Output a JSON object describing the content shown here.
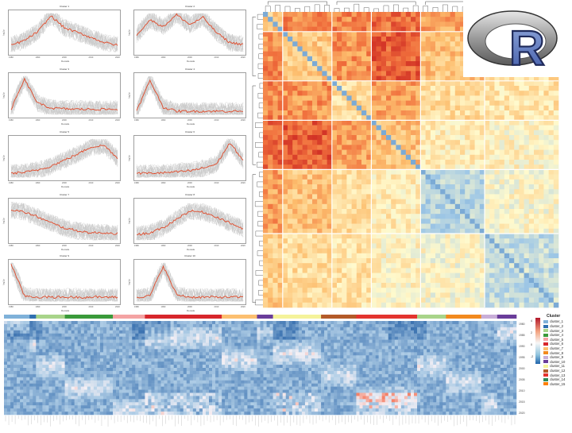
{
  "panels": [
    {
      "title": "Cluster 1",
      "x_ticks": [
        "1980",
        "1990",
        "2000",
        "2010",
        "2020"
      ],
      "y_label": "log1p"
    },
    {
      "title": "Cluster 2",
      "x_ticks": [
        "1980",
        "1990",
        "2000",
        "2010",
        "2020"
      ],
      "y_label": "log1p"
    },
    {
      "title": "Cluster 3",
      "x_ticks": [
        "1980",
        "1990",
        "2000",
        "2010",
        "2020"
      ],
      "y_label": "log1p"
    },
    {
      "title": "Cluster 4",
      "x_ticks": [
        "1980",
        "1990",
        "2000",
        "2010",
        "2020"
      ],
      "y_label": "log1p"
    },
    {
      "title": "Cluster 5",
      "x_ticks": [
        "1980",
        "1990",
        "2000",
        "2010",
        "2020"
      ],
      "y_label": "log1p"
    },
    {
      "title": "Cluster 6",
      "x_ticks": [
        "1980",
        "1990",
        "2000",
        "2010",
        "2020"
      ],
      "y_label": "log1p"
    },
    {
      "title": "Cluster 7",
      "x_ticks": [
        "1980",
        "1990",
        "2000",
        "2010",
        "2020"
      ],
      "y_label": "log1p"
    },
    {
      "title": "Cluster 8",
      "x_ticks": [
        "1980",
        "1990",
        "2000",
        "2010",
        "2020"
      ],
      "y_label": "log1p"
    },
    {
      "title": "Cluster 9",
      "x_ticks": [
        "1980",
        "1990",
        "2000",
        "2010",
        "2020"
      ],
      "y_label": "log1p"
    },
    {
      "title": "Cluster 10",
      "x_ticks": [
        "1980",
        "1990",
        "2000",
        "2010",
        "2020"
      ],
      "y_label": "log1p"
    }
  ],
  "x_axis_label": "Decade",
  "logo": {
    "letter": "R"
  },
  "bottom": {
    "legend_title": "Cluster",
    "legend_items": [
      {
        "label": "cluster_1",
        "color": "#7fb1d9"
      },
      {
        "label": "cluster_2",
        "color": "#2f6fb0"
      },
      {
        "label": "cluster_3",
        "color": "#a8d48a"
      },
      {
        "label": "cluster_4",
        "color": "#3a9a3a"
      },
      {
        "label": "cluster_5",
        "color": "#f4a3a3"
      },
      {
        "label": "cluster_6",
        "color": "#d7262c"
      },
      {
        "label": "cluster_7",
        "color": "#fcbf6f"
      },
      {
        "label": "cluster_8",
        "color": "#f28a1e"
      },
      {
        "label": "cluster_9",
        "color": "#c8aed8"
      },
      {
        "label": "cluster_10",
        "color": "#6a3d9a"
      },
      {
        "label": "cluster_11",
        "color": "#f5f39a"
      },
      {
        "label": "cluster_12",
        "color": "#b35a28"
      },
      {
        "label": "cluster_13",
        "color": "#e3342f"
      },
      {
        "label": "cluster_14",
        "color": "#2e8b57"
      },
      {
        "label": "cluster_15",
        "color": "#ff7f00"
      }
    ],
    "scale_ticks": [
      "4",
      "2",
      "0",
      "-2"
    ],
    "years": [
      "1980",
      "1985",
      "1990",
      "1995",
      "2000",
      "2005",
      "2010",
      "2015",
      "2020"
    ]
  },
  "chart_data": [
    {
      "type": "line",
      "title": "Cluster 1",
      "x": [
        1980,
        1985,
        1990,
        1995,
        2000,
        2005,
        2010,
        2015,
        2020
      ],
      "series": [
        {
          "values": [
            0.18,
            0.3,
            0.52,
            0.92,
            0.62,
            0.5,
            0.38,
            0.25,
            0.18
          ]
        }
      ]
    },
    {
      "type": "line",
      "title": "Cluster 2",
      "x": [
        1980,
        1985,
        1990,
        1995,
        2000,
        2005,
        2010,
        2015,
        2020
      ],
      "series": [
        {
          "values": [
            0.45,
            0.82,
            0.65,
            0.95,
            0.7,
            0.88,
            0.5,
            0.25,
            0.2
          ]
        }
      ]
    },
    {
      "type": "line",
      "title": "Cluster 3",
      "x": [
        1980,
        1985,
        1990,
        1995,
        2000,
        2005,
        2010,
        2015,
        2020
      ],
      "series": [
        {
          "values": [
            0.15,
            0.9,
            0.3,
            0.18,
            0.16,
            0.15,
            0.15,
            0.15,
            0.15
          ]
        }
      ]
    },
    {
      "type": "line",
      "title": "Cluster 4",
      "x": [
        1980,
        1985,
        1990,
        1995,
        2000,
        2005,
        2010,
        2015,
        2020
      ],
      "series": [
        {
          "values": [
            0.1,
            0.88,
            0.2,
            0.1,
            0.1,
            0.1,
            0.1,
            0.1,
            0.1
          ]
        }
      ]
    },
    {
      "type": "line",
      "title": "Cluster 5",
      "x": [
        1980,
        1985,
        1990,
        1995,
        2000,
        2005,
        2010,
        2015,
        2020
      ],
      "series": [
        {
          "values": [
            0.12,
            0.14,
            0.2,
            0.3,
            0.45,
            0.6,
            0.78,
            0.82,
            0.5
          ]
        }
      ]
    },
    {
      "type": "line",
      "title": "Cluster 6",
      "x": [
        1980,
        1985,
        1990,
        1995,
        2000,
        2005,
        2010,
        2015,
        2020
      ],
      "series": [
        {
          "values": [
            0.12,
            0.12,
            0.13,
            0.15,
            0.18,
            0.25,
            0.35,
            0.88,
            0.45
          ]
        }
      ]
    },
    {
      "type": "line",
      "title": "Cluster 7",
      "x": [
        1980,
        1985,
        1990,
        1995,
        2000,
        2005,
        2010,
        2015,
        2020
      ],
      "series": [
        {
          "values": [
            0.78,
            0.72,
            0.6,
            0.45,
            0.32,
            0.25,
            0.2,
            0.2,
            0.18
          ]
        }
      ]
    },
    {
      "type": "line",
      "title": "Cluster 8",
      "x": [
        1980,
        1985,
        1990,
        1995,
        2000,
        2005,
        2010,
        2015,
        2020
      ],
      "series": [
        {
          "values": [
            0.15,
            0.2,
            0.32,
            0.55,
            0.75,
            0.72,
            0.6,
            0.45,
            0.3
          ]
        }
      ]
    },
    {
      "type": "line",
      "title": "Cluster 9",
      "x": [
        1980,
        1985,
        1990,
        1995,
        2000,
        2005,
        2010,
        2015,
        2020
      ],
      "series": [
        {
          "values": [
            0.95,
            0.15,
            0.12,
            0.12,
            0.12,
            0.12,
            0.12,
            0.12,
            0.12
          ]
        }
      ]
    },
    {
      "type": "line",
      "title": "Cluster 10",
      "x": [
        1980,
        1985,
        1990,
        1995,
        2000,
        2005,
        2010,
        2015,
        2020
      ],
      "series": [
        {
          "values": [
            0.12,
            0.15,
            0.9,
            0.18,
            0.12,
            0.12,
            0.12,
            0.12,
            0.12
          ]
        }
      ]
    },
    {
      "type": "heatmap",
      "rows": 60,
      "cols": 60
    },
    {
      "type": "heatmap",
      "rows": 30,
      "cols": 160
    }
  ]
}
